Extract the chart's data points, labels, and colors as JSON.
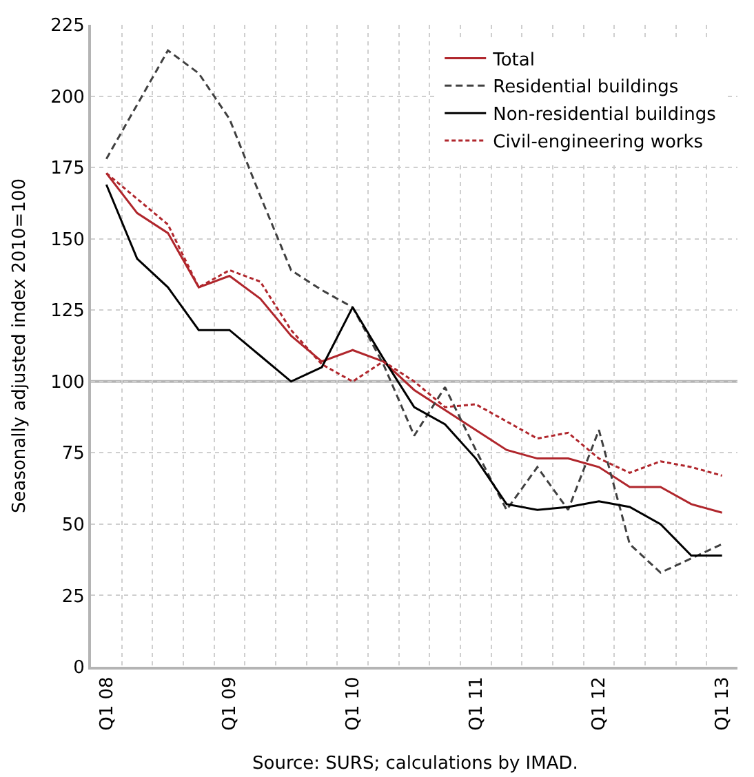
{
  "chart_data": {
    "type": "line",
    "ylabel": "Seasonally adjusted index 2010=100",
    "annotations": [
      "Source: SURS; calculations by IMAD."
    ],
    "categories": [
      "Q1 08",
      null,
      null,
      null,
      "Q1 09",
      null,
      null,
      null,
      "Q1 10",
      null,
      null,
      null,
      "Q1 11",
      null,
      null,
      null,
      "Q1 12",
      null,
      null,
      null,
      "Q1 13"
    ],
    "series": [
      {
        "name": "Total",
        "color": "#b0262c",
        "line_style": "solid",
        "values": [
          173,
          159,
          152,
          133,
          137,
          129,
          116,
          107,
          111,
          107,
          97,
          90,
          83,
          76,
          73,
          73,
          70,
          63,
          63,
          57,
          54
        ]
      },
      {
        "name": "Residential buildings",
        "color": "#404040",
        "line_style": "dashed",
        "values": [
          178,
          197,
          216,
          208,
          192,
          165,
          139,
          132,
          126,
          106,
          81,
          98,
          76,
          55,
          70,
          55,
          83,
          43,
          33,
          38,
          43
        ]
      },
      {
        "name": "Non-residential buildings",
        "color": "#000000",
        "line_style": "solid",
        "values": [
          169,
          143,
          133,
          118,
          118,
          109,
          100,
          105,
          126,
          108,
          91,
          85,
          73,
          57,
          55,
          56,
          58,
          56,
          50,
          39,
          39
        ]
      },
      {
        "name": "Civil-engineering works",
        "color": "#b0262c",
        "line_style": "dotted",
        "values": [
          173,
          164,
          155,
          133,
          139,
          135,
          118,
          106,
          100,
          107,
          100,
          91,
          92,
          86,
          80,
          82,
          73,
          68,
          72,
          70,
          67
        ]
      }
    ],
    "ylim": [
      0,
      225
    ],
    "yticks": [
      0,
      25,
      50,
      75,
      100,
      125,
      150,
      175,
      200,
      225
    ],
    "ref_lines": [
      {
        "axis": "y",
        "value": 100,
        "color": "#b4b4b4"
      }
    ],
    "grid": true,
    "legend": "top right",
    "marker": "none"
  }
}
